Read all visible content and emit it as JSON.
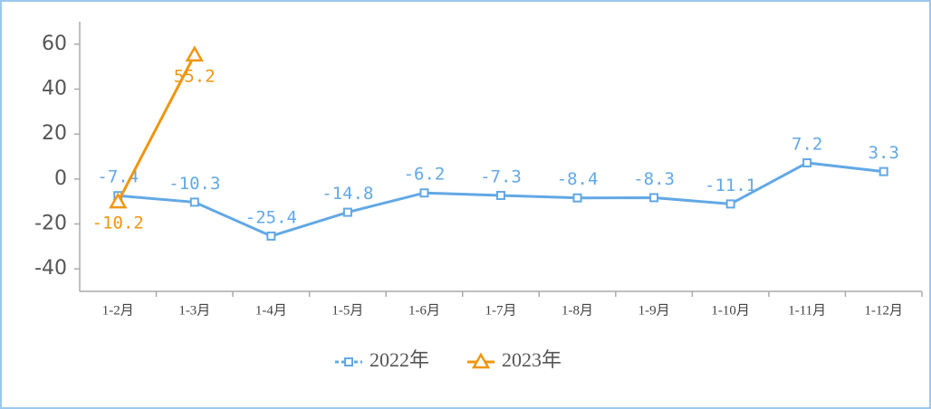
{
  "chart_data": {
    "type": "line",
    "categories": [
      "1-2月",
      "1-3月",
      "1-4月",
      "1-5月",
      "1-6月",
      "1-7月",
      "1-8月",
      "1-9月",
      "1-10月",
      "1-11月",
      "1-12月"
    ],
    "series": [
      {
        "name": "2022年",
        "color": "#62a8e5",
        "marker": "square",
        "values": [
          -7.4,
          -10.3,
          -25.4,
          -14.8,
          -6.2,
          -7.3,
          -8.4,
          -8.3,
          -11.1,
          7.2,
          3.3
        ]
      },
      {
        "name": "2023年",
        "color": "#f0960f",
        "marker": "triangle",
        "values": [
          -10.2,
          55.2,
          null,
          null,
          null,
          null,
          null,
          null,
          null,
          null,
          null
        ]
      }
    ],
    "ylim": [
      -50,
      70
    ],
    "yticks": [
      -40,
      -20,
      0,
      20,
      40,
      60
    ],
    "grid": false,
    "legend": "bottom"
  }
}
